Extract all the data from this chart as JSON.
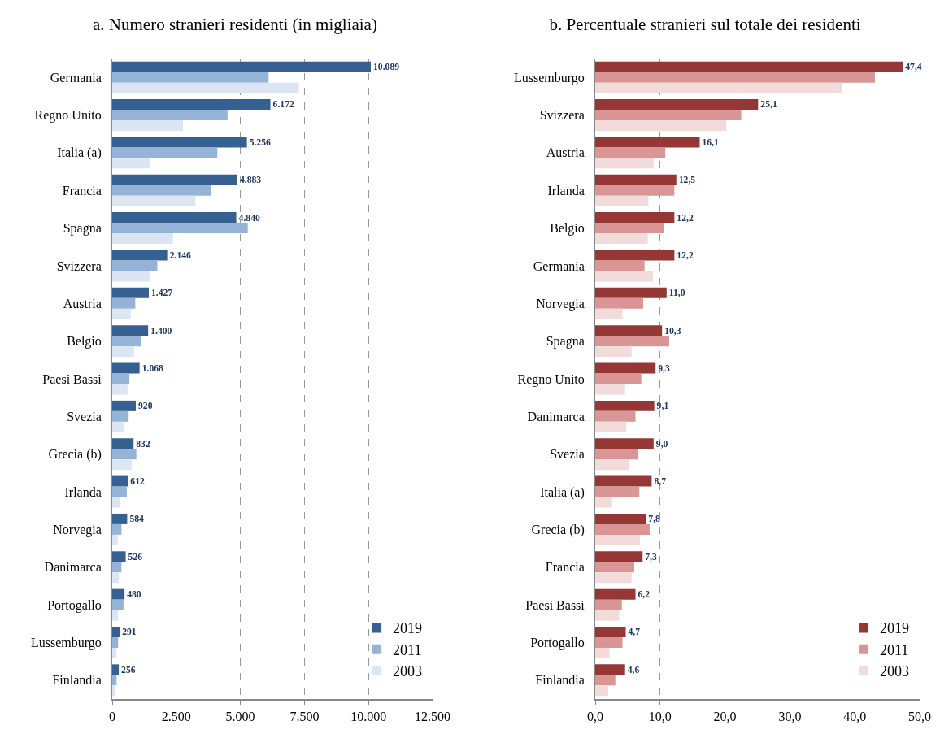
{
  "chart_data": [
    {
      "type": "bar",
      "orientation": "horizontal",
      "title": "a. Numero stranieri residenti (in migliaia)",
      "categories": [
        "Germania",
        "Regno Unito",
        "Italia (a)",
        "Francia",
        "Spagna",
        "Svizzera",
        "Austria",
        "Belgio",
        "Paesi Bassi",
        "Svezia",
        "Grecia (b)",
        "Irlanda",
        "Norvegia",
        "Danimarca",
        "Portogallo",
        "Lussemburgo",
        "Finlandia"
      ],
      "series": [
        {
          "name": "2019",
          "color": "#376092",
          "values": [
            10089,
            6172,
            5256,
            4883,
            4840,
            2146,
            1427,
            1400,
            1068,
            920,
            832,
            612,
            584,
            526,
            480,
            291,
            256
          ],
          "value_labels": [
            "10.089",
            "6.172",
            "5.256",
            "4.883",
            "4.840",
            "2.146",
            "1.427",
            "1.400",
            "1.068",
            "920",
            "832",
            "612",
            "584",
            "526",
            "480",
            "291",
            "256"
          ]
        },
        {
          "name": "2011",
          "color": "#95b3d7",
          "values": [
            6100,
            4500,
            4100,
            3860,
            5290,
            1760,
            900,
            1140,
            670,
            640,
            940,
            570,
            360,
            360,
            440,
            230,
            170
          ]
        },
        {
          "name": "2003",
          "color": "#dce6f2",
          "values": [
            7280,
            2760,
            1490,
            3250,
            2370,
            1480,
            720,
            850,
            600,
            480,
            760,
            320,
            210,
            260,
            230,
            170,
            120
          ]
        }
      ],
      "xlim": [
        0,
        12500
      ],
      "xticks": [
        0,
        {
          "value": 2500,
          "label": "2.500"
        },
        {
          "value": 5000,
          "label": "5.000"
        },
        {
          "value": 7500,
          "label": "7.500"
        },
        {
          "value": 10000,
          "label": "10.000"
        },
        {
          "value": 12500,
          "label": "12.500"
        }
      ],
      "grid": "x",
      "legend": "bottom right"
    },
    {
      "type": "bar",
      "orientation": "horizontal",
      "title": "b. Percentuale stranieri sul totale dei residenti",
      "categories": [
        "Lussemburgo",
        "Svizzera",
        "Austria",
        "Irlanda",
        "Belgio",
        "Germania",
        "Norvegia",
        "Spagna",
        "Regno Unito",
        "Danimarca",
        "Svezia",
        "Italia (a)",
        "Grecia (b)",
        "Francia",
        "Paesi Bassi",
        "Portogallo",
        "Finlandia"
      ],
      "series": [
        {
          "name": "2019",
          "color": "#953735",
          "values": [
            47.4,
            25.1,
            16.1,
            12.5,
            12.2,
            12.2,
            11.0,
            10.3,
            9.3,
            9.1,
            9.0,
            8.7,
            7.8,
            7.3,
            6.2,
            4.7,
            4.6
          ],
          "value_labels": [
            "47,4",
            "25,1",
            "16,1",
            "12,5",
            "12,2",
            "12,2",
            "11,0",
            "10,3",
            "9,3",
            "9,1",
            "9,0",
            "8,7",
            "7,8",
            "7,3",
            "6,2",
            "4,7",
            "4,6"
          ]
        },
        {
          "name": "2011",
          "color": "#d99694",
          "values": [
            43.1,
            22.5,
            10.8,
            12.2,
            10.6,
            7.6,
            7.4,
            11.4,
            7.1,
            6.2,
            6.6,
            6.8,
            8.4,
            6.0,
            4.1,
            4.2,
            3.1
          ]
        },
        {
          "name": "2003",
          "color": "#f2dcdb",
          "values": [
            38.0,
            20.2,
            9.0,
            8.2,
            8.1,
            8.9,
            4.2,
            5.6,
            4.6,
            4.8,
            5.2,
            2.6,
            6.9,
            5.6,
            3.7,
            2.2,
            2.0
          ]
        }
      ],
      "xlim": [
        0,
        50
      ],
      "xticks": [
        {
          "value": 0,
          "label": "0,0"
        },
        {
          "value": 10,
          "label": "10,0"
        },
        {
          "value": 20,
          "label": "20,0"
        },
        {
          "value": 30,
          "label": "30,0"
        },
        {
          "value": 40,
          "label": "40,0"
        },
        {
          "value": 50,
          "label": "50,0"
        }
      ],
      "grid": "x",
      "legend": "bottom right"
    }
  ]
}
